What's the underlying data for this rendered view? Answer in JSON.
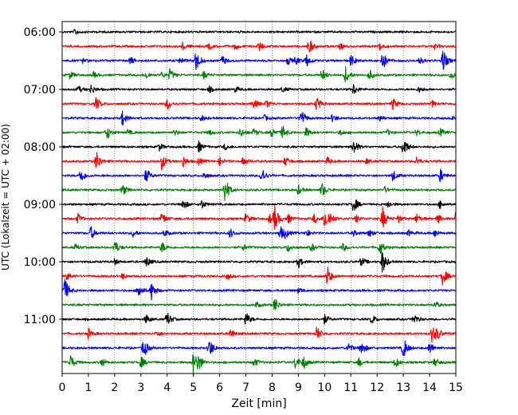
{
  "chart_data": {
    "type": "line",
    "title": "",
    "xlabel": "Zeit  [min]",
    "ylabel": "UTC (Lokalzeit = UTC + 02:00)",
    "xlim": [
      0,
      15
    ],
    "x_ticks": [
      "0",
      "1",
      "2",
      "3",
      "4",
      "5",
      "6",
      "7",
      "8",
      "9",
      "10",
      "11",
      "12",
      "13",
      "14",
      "15"
    ],
    "y_ticks": [
      {
        "label": "06:00",
        "trace": 0
      },
      {
        "label": "07:00",
        "trace": 4
      },
      {
        "label": "08:00",
        "trace": 8
      },
      {
        "label": "09:00",
        "trace": 12
      },
      {
        "label": "10:00",
        "trace": 16
      },
      {
        "label": "11:00",
        "trace": 20
      }
    ],
    "vertical_grid": "dotted at each minute",
    "legend": "none",
    "trace_interval_min": 15,
    "trace_colors": [
      "#000000",
      "#ff0000",
      "#0000ff",
      "#008000"
    ],
    "traces": [
      {
        "start": "06:00",
        "events": [
          [
            0.5,
            0.3
          ]
        ]
      },
      {
        "start": "06:15",
        "events": [
          [
            4.6,
            0.4
          ],
          [
            5.6,
            0.3
          ],
          [
            6.6,
            0.3
          ],
          [
            7.5,
            0.5
          ],
          [
            9.4,
            0.9
          ],
          [
            10.6,
            0.3
          ],
          [
            12.1,
            0.5
          ],
          [
            14.2,
            0.3
          ]
        ]
      },
      {
        "start": "06:30",
        "events": [
          [
            0.8,
            0.3
          ],
          [
            2.6,
            0.4
          ],
          [
            4.5,
            0.3
          ],
          [
            5.1,
            1.2
          ],
          [
            6.1,
            0.5
          ],
          [
            8.6,
            0.4
          ],
          [
            8.9,
            0.4
          ],
          [
            9.3,
            0.7
          ],
          [
            11.0,
            0.6
          ],
          [
            12.2,
            1.1
          ],
          [
            13.6,
            0.4
          ],
          [
            14.5,
            1.3
          ]
        ]
      },
      {
        "start": "06:45",
        "events": [
          [
            0.3,
            0.4
          ],
          [
            1.2,
            0.3
          ],
          [
            3.2,
            0.4
          ],
          [
            3.8,
            0.3
          ],
          [
            4.1,
            0.6
          ],
          [
            5.4,
            0.4
          ],
          [
            9.9,
            0.7
          ],
          [
            10.8,
            0.9
          ],
          [
            11.7,
            0.6
          ],
          [
            14.8,
            0.4
          ]
        ]
      },
      {
        "start": "07:00",
        "events": [
          [
            0.6,
            0.4
          ],
          [
            1.1,
            0.5
          ],
          [
            5.6,
            0.3
          ],
          [
            6.6,
            0.3
          ],
          [
            8.4,
            0.3
          ],
          [
            11.1,
            0.6
          ],
          [
            13.6,
            0.3
          ]
        ]
      },
      {
        "start": "07:15",
        "events": [
          [
            1.3,
            0.7
          ],
          [
            4.0,
            0.6
          ],
          [
            7.3,
            0.5
          ],
          [
            7.8,
            0.4
          ],
          [
            9.7,
            0.8
          ],
          [
            12.6,
            0.6
          ],
          [
            14.1,
            0.3
          ]
        ]
      },
      {
        "start": "07:30",
        "events": [
          [
            2.3,
            0.8
          ],
          [
            5.3,
            0.3
          ],
          [
            7.7,
            0.3
          ],
          [
            9.1,
            1.0
          ],
          [
            10.3,
            0.4
          ],
          [
            12.1,
            0.3
          ],
          [
            14.9,
            0.3
          ]
        ]
      },
      {
        "start": "07:45",
        "events": [
          [
            1.7,
            0.8
          ],
          [
            2.5,
            0.3
          ],
          [
            4.3,
            0.3
          ],
          [
            5.6,
            0.3
          ],
          [
            6.8,
            0.5
          ],
          [
            7.3,
            0.4
          ],
          [
            8.0,
            0.6
          ],
          [
            8.4,
            0.7
          ],
          [
            9.3,
            0.5
          ],
          [
            10.6,
            0.3
          ],
          [
            12.4,
            0.3
          ],
          [
            13.5,
            0.3
          ],
          [
            14.4,
            0.4
          ]
        ]
      },
      {
        "start": "08:00",
        "events": [
          [
            3.7,
            0.4
          ],
          [
            5.2,
            0.6
          ],
          [
            6.2,
            0.3
          ],
          [
            11.1,
            0.9
          ],
          [
            13.0,
            1.2
          ]
        ]
      },
      {
        "start": "08:15",
        "events": [
          [
            1.3,
            1.1
          ],
          [
            3.8,
            0.9
          ],
          [
            4.6,
            0.6
          ],
          [
            5.2,
            0.4
          ],
          [
            6.0,
            0.4
          ],
          [
            6.9,
            0.5
          ],
          [
            8.5,
            0.5
          ],
          [
            10.1,
            0.4
          ],
          [
            11.6,
            0.3
          ],
          [
            13.5,
            0.4
          ]
        ]
      },
      {
        "start": "08:30",
        "events": [
          [
            0.7,
            0.9
          ],
          [
            3.2,
            0.8
          ],
          [
            5.4,
            0.4
          ],
          [
            7.6,
            0.9
          ],
          [
            12.6,
            0.6
          ],
          [
            14.4,
            0.7
          ]
        ]
      },
      {
        "start": "08:45",
        "events": [
          [
            2.3,
            0.6
          ],
          [
            6.2,
            1.5
          ],
          [
            9.0,
            0.5
          ],
          [
            9.9,
            0.8
          ],
          [
            12.3,
            0.3
          ]
        ]
      },
      {
        "start": "09:00",
        "events": [
          [
            4.6,
            0.6
          ],
          [
            5.3,
            0.5
          ],
          [
            11.1,
            0.9
          ],
          [
            12.4,
            0.4
          ],
          [
            14.4,
            0.4
          ]
        ]
      },
      {
        "start": "09:15",
        "events": [
          [
            0.6,
            0.5
          ],
          [
            3.8,
            0.7
          ],
          [
            7.0,
            0.6
          ],
          [
            7.9,
            0.5
          ],
          [
            8.1,
            1.3
          ],
          [
            8.6,
            0.5
          ],
          [
            9.6,
            0.5
          ],
          [
            10.0,
            1.2
          ],
          [
            10.2,
            0.5
          ],
          [
            11.2,
            0.4
          ],
          [
            12.2,
            1.3
          ],
          [
            12.8,
            0.4
          ],
          [
            13.5,
            0.5
          ],
          [
            14.3,
            0.5
          ],
          [
            15.0,
            0.7
          ]
        ]
      },
      {
        "start": "09:30",
        "events": [
          [
            1.1,
            0.7
          ],
          [
            2.7,
            0.4
          ],
          [
            3.9,
            0.4
          ],
          [
            6.4,
            0.5
          ],
          [
            8.3,
            0.8
          ],
          [
            8.5,
            0.4
          ],
          [
            9.3,
            0.4
          ],
          [
            11.1,
            0.3
          ],
          [
            11.7,
            0.4
          ],
          [
            13.2,
            0.3
          ],
          [
            14.2,
            0.4
          ]
        ]
      },
      {
        "start": "09:45",
        "events": [
          [
            0.5,
            0.3
          ],
          [
            2.0,
            0.8
          ],
          [
            3.8,
            0.6
          ],
          [
            6.9,
            0.3
          ],
          [
            8.6,
            0.5
          ],
          [
            9.5,
            0.4
          ],
          [
            10.7,
            0.4
          ],
          [
            12.1,
            0.8
          ]
        ]
      },
      {
        "start": "10:00",
        "events": [
          [
            2.0,
            0.3
          ],
          [
            3.2,
            0.6
          ],
          [
            9.0,
            0.6
          ],
          [
            11.4,
            0.5
          ],
          [
            12.2,
            1.3
          ]
        ]
      },
      {
        "start": "10:15",
        "events": [
          [
            0.2,
            0.4
          ],
          [
            2.3,
            0.3
          ],
          [
            6.3,
            0.3
          ],
          [
            10.1,
            1.1
          ],
          [
            14.5,
            1.0
          ]
        ]
      },
      {
        "start": "10:30",
        "events": [
          [
            0.1,
            1.3
          ],
          [
            2.9,
            0.9
          ],
          [
            3.4,
            1.0
          ],
          [
            9.0,
            0.3
          ]
        ]
      },
      {
        "start": "10:45",
        "events": [
          [
            7.4,
            0.3
          ],
          [
            8.1,
            0.8
          ],
          [
            14.2,
            0.4
          ]
        ]
      },
      {
        "start": "11:00",
        "events": [
          [
            3.2,
            0.5
          ],
          [
            4.0,
            0.8
          ],
          [
            7.0,
            0.8
          ],
          [
            10.0,
            0.5
          ],
          [
            11.8,
            0.5
          ],
          [
            13.4,
            0.6
          ]
        ]
      },
      {
        "start": "11:15",
        "events": [
          [
            1.0,
            0.5
          ],
          [
            3.6,
            0.3
          ],
          [
            6.4,
            0.5
          ],
          [
            9.7,
            0.8
          ],
          [
            14.1,
            1.0
          ],
          [
            14.3,
            0.5
          ]
        ]
      },
      {
        "start": "11:30",
        "events": [
          [
            3.1,
            1.1
          ],
          [
            5.6,
            1.1
          ],
          [
            10.9,
            0.6
          ],
          [
            11.4,
            0.8
          ],
          [
            13.0,
            1.2
          ],
          [
            14.0,
            0.7
          ]
        ]
      },
      {
        "start": "11:45",
        "events": [
          [
            0.3,
            0.9
          ],
          [
            1.5,
            0.5
          ],
          [
            3.0,
            0.6
          ],
          [
            5.0,
            1.3
          ],
          [
            5.2,
            0.7
          ],
          [
            7.3,
            0.5
          ],
          [
            8.9,
            0.8
          ],
          [
            9.2,
            0.6
          ],
          [
            11.3,
            0.5
          ],
          [
            12.7,
            0.6
          ],
          [
            14.2,
            0.5
          ]
        ]
      }
    ]
  }
}
